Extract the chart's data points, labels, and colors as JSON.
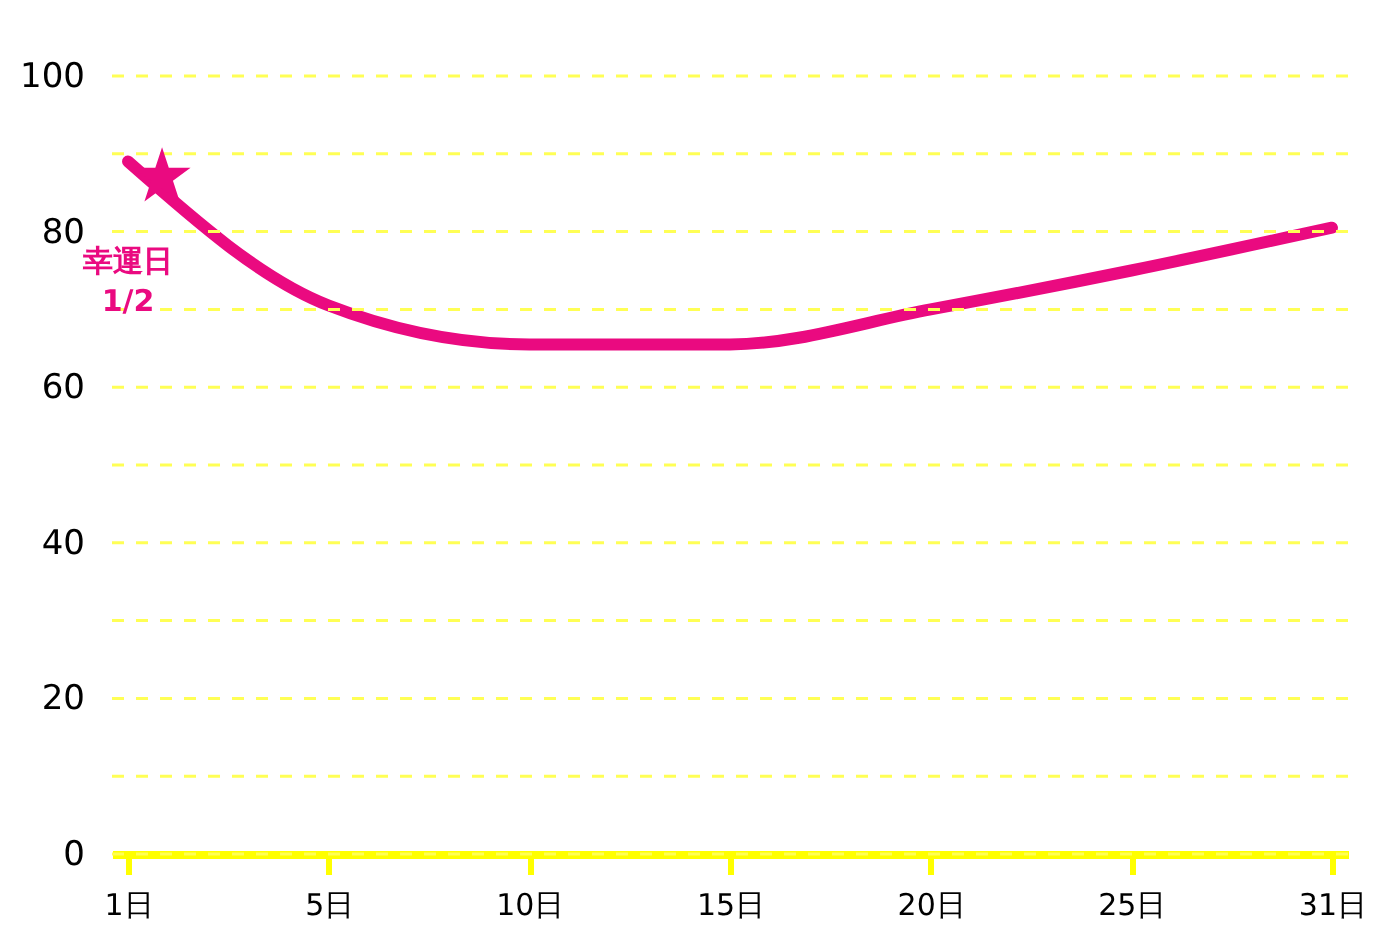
{
  "chart_data": {
    "type": "line",
    "categories": [
      "1日",
      "5日",
      "10日",
      "15日",
      "20日",
      "25日",
      "31日"
    ],
    "series": [
      {
        "color": "#ea0a80",
        "values": [
          89,
          70.5,
          65.5,
          65.5,
          70,
          75,
          80.5
        ]
      }
    ],
    "ylim": [
      0,
      100
    ],
    "yticks": [
      0,
      {
        "value": 10,
        "label": null
      },
      20,
      {
        "value": 30,
        "label": null
      },
      40,
      {
        "value": 50,
        "label": null
      },
      60,
      {
        "value": 70,
        "label": null
      },
      80,
      {
        "value": 90,
        "label": null
      },
      100
    ],
    "grid": "y",
    "marker": "none",
    "line_style": "solid",
    "annotations": [
      {
        "text": "幸運日 1/2",
        "x": "1日",
        "y": 87
      }
    ]
  }
}
